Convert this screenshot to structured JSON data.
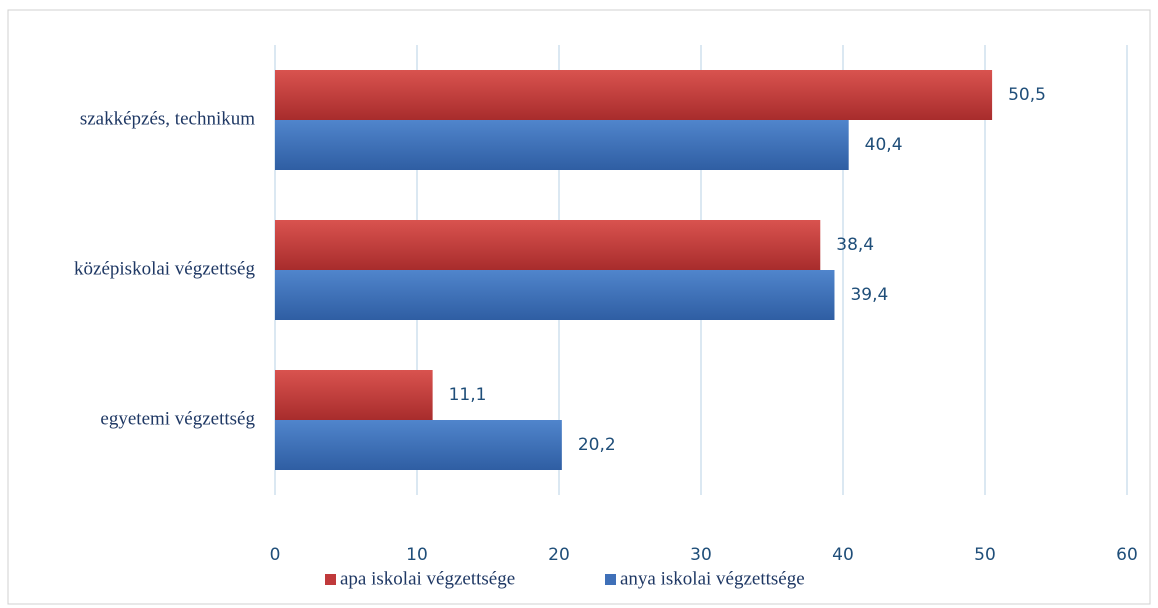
{
  "chart_data": {
    "type": "hbar",
    "categories": [
      "szakképzés, technikum",
      "középiskolai végzettség",
      "egyetemi végzettség"
    ],
    "series": [
      {
        "name": "apa iskolai végzettsége",
        "color": "#c0393b",
        "values": [
          50.5,
          38.4,
          11.1
        ],
        "value_labels": [
          "50,5",
          "38,4",
          "11,1"
        ]
      },
      {
        "name": "anya iskolai végzettsége",
        "color": "#3f70b8",
        "values": [
          40.4,
          39.4,
          20.2
        ],
        "value_labels": [
          "40,4",
          "39,4",
          "20,2"
        ]
      }
    ],
    "xlim": [
      0,
      60
    ],
    "xticks": [
      0,
      10,
      20,
      30,
      40,
      50,
      60
    ],
    "grid": true,
    "legend": "bottom"
  }
}
